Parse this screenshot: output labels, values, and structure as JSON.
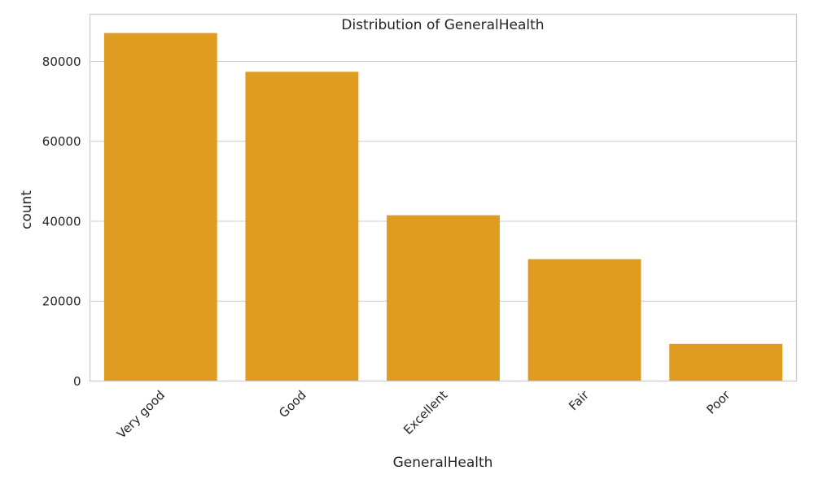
{
  "chart_data": {
    "type": "bar",
    "title": "Distribution of GeneralHealth",
    "xlabel": "GeneralHealth",
    "ylabel": "count",
    "categories": [
      "Very good",
      "Good",
      "Excellent",
      "Fair",
      "Poor"
    ],
    "values": [
      87100,
      77400,
      41500,
      30500,
      9300
    ],
    "ylim": [
      0,
      91800
    ],
    "yticks": [
      0,
      20000,
      40000,
      60000,
      80000
    ],
    "ytick_labels": [
      "0",
      "20000",
      "40000",
      "60000",
      "80000"
    ],
    "bar_color": "#e09c20",
    "grid": true
  }
}
